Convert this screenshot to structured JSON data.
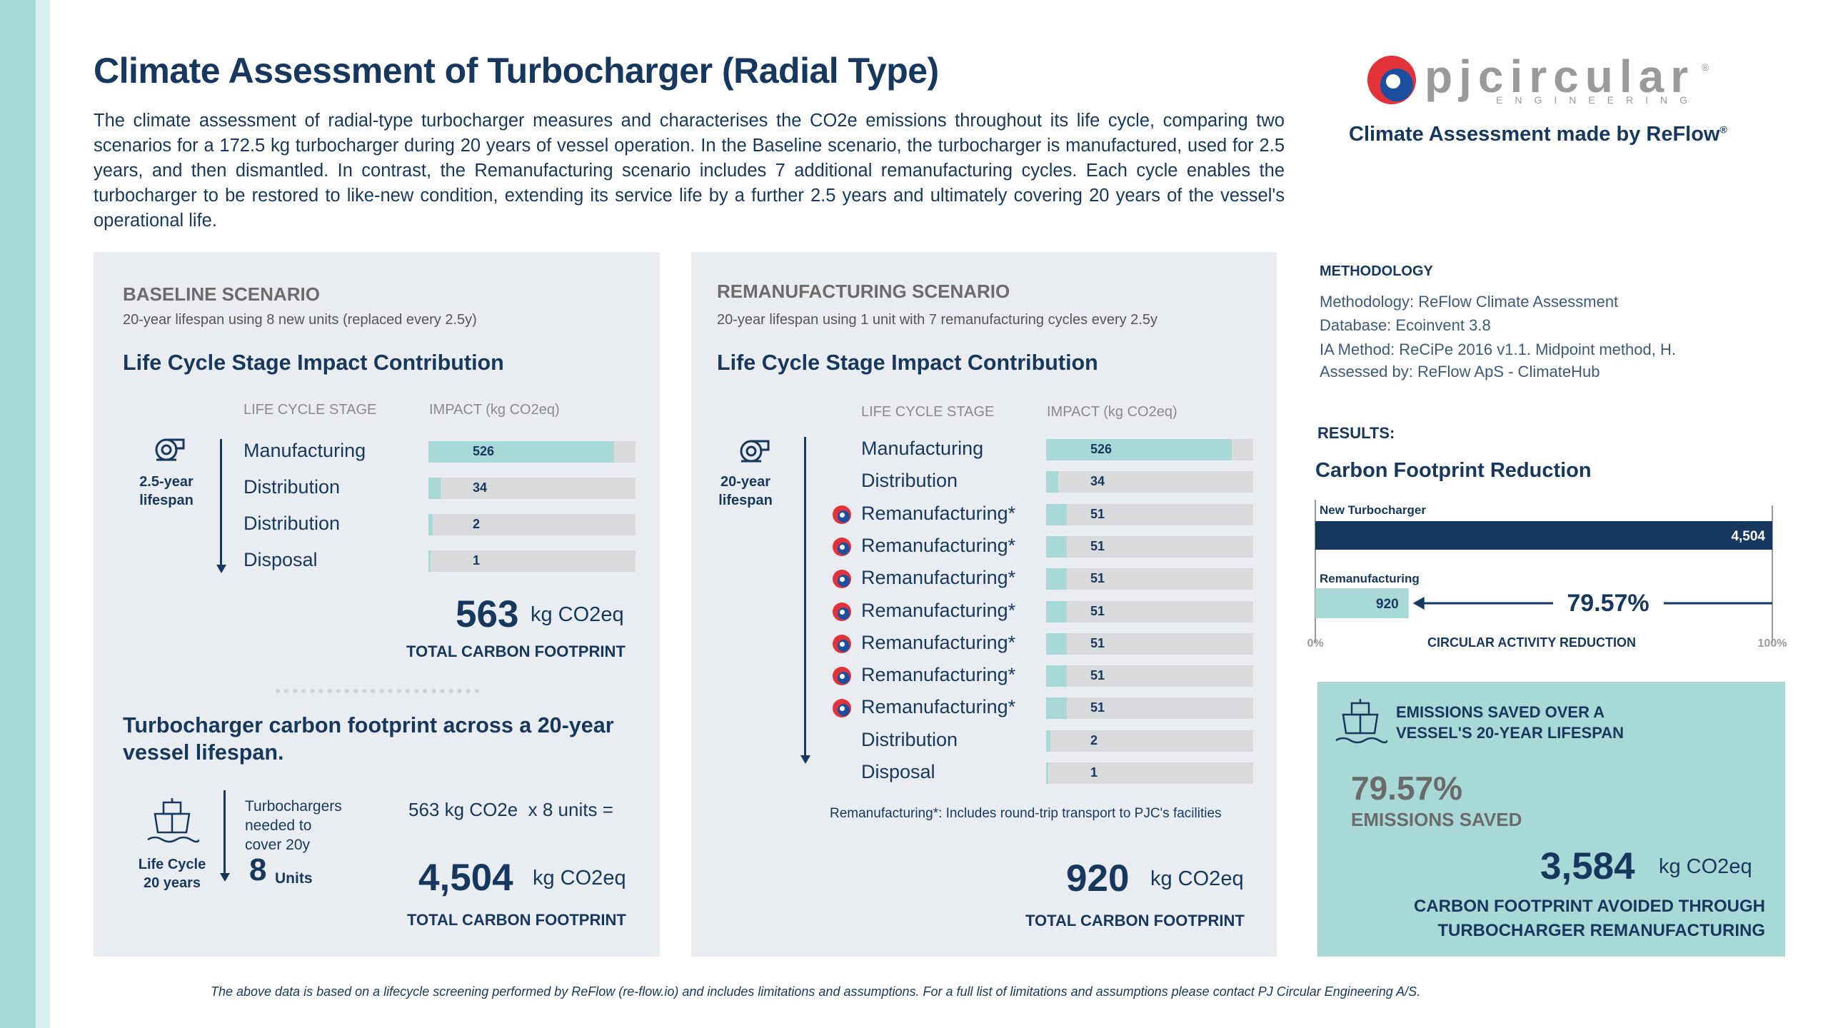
{
  "title": "Climate Assessment of Turbocharger (Radial Type)",
  "intro": "The climate assessment of radial-type turbocharger measures and characterises the CO2e emissions throughout its life cycle, comparing two scenarios for a 172.5 kg turbocharger during 20 years of vessel operation. In the Baseline scenario, the turbocharger is manufactured, used for 2.5 years, and then dismantled. In contrast, the Remanufacturing scenario includes 7 additional remanufacturing cycles. Each cycle enables the turbocharger to be restored to like-new condition, extending its service life by a further 2.5 years and ultimately covering 20 years of the vessel's operational life.",
  "logo": {
    "name": "pjcircular",
    "sub": "ENGINEERING",
    "reg": "®"
  },
  "made_by": "Climate Assessment made by ReFlow",
  "made_by_reg": "®",
  "colors": {
    "navy": "#16385f",
    "teal": "#a8d9d6",
    "panel": "#e9edf2",
    "grey_bar": "#d9dadb",
    "logo_red": "#e2333a",
    "logo_blue": "#1a4fa0"
  },
  "baseline": {
    "heading": "BASELINE SCENARIO",
    "subheading": "20-year lifespan using 8 new units (replaced every 2.5y)",
    "section_title": "Life Cycle Stage Impact Contribution",
    "col_stage": "LIFE CYCLE STAGE",
    "col_impact": "IMPACT (kg CO2eq)",
    "lifespan_line1": "2.5-year",
    "lifespan_line2": "lifespan",
    "icon": "turbocharger-icon",
    "stages": [
      {
        "label": "Manufacturing",
        "value": "526",
        "fraction": 0.895
      },
      {
        "label": "Distribution",
        "value": "34",
        "fraction": 0.06
      },
      {
        "label": "Distribution",
        "value": "2",
        "fraction": 0.02
      },
      {
        "label": "Disposal",
        "value": "1",
        "fraction": 0.008
      }
    ],
    "total_value": "563",
    "total_unit": "kg CO2eq",
    "total_label": "TOTAL CARBON FOOTPRINT",
    "vessel_title": "Turbocharger carbon footprint across a 20-year vessel lifespan.",
    "ship_icon": "ship-icon",
    "life_cycle_line1": "Life Cycle",
    "life_cycle_line2": "20 years",
    "needed_text": "Turbochargers needed to cover 20y",
    "units_num": "8",
    "units_label": "Units",
    "equation": "563 kg CO2e  x 8 units =",
    "vessel_total": "4,504",
    "vessel_unit": "kg CO2eq",
    "vessel_total_label": "TOTAL CARBON FOOTPRINT"
  },
  "reman": {
    "heading": "REMANUFACTURING SCENARIO",
    "subheading": "20-year lifespan using 1 unit with 7 remanufacturing cycles every 2.5y",
    "section_title": "Life Cycle Stage Impact Contribution",
    "col_stage": "LIFE CYCLE STAGE",
    "col_impact": "IMPACT (kg CO2eq)",
    "lifespan_line1": "20-year",
    "lifespan_line2": "lifespan",
    "icon": "turbocharger-icon",
    "stages": [
      {
        "label": "Manufacturing",
        "value": "526",
        "fraction": 0.895,
        "logo": false
      },
      {
        "label": "Distribution",
        "value": "34",
        "fraction": 0.06,
        "logo": false
      },
      {
        "label": "Remanufacturing*",
        "value": "51",
        "fraction": 0.1,
        "logo": true
      },
      {
        "label": "Remanufacturing*",
        "value": "51",
        "fraction": 0.1,
        "logo": true
      },
      {
        "label": "Remanufacturing*",
        "value": "51",
        "fraction": 0.1,
        "logo": true
      },
      {
        "label": "Remanufacturing*",
        "value": "51",
        "fraction": 0.1,
        "logo": true
      },
      {
        "label": "Remanufacturing*",
        "value": "51",
        "fraction": 0.1,
        "logo": true
      },
      {
        "label": "Remanufacturing*",
        "value": "51",
        "fraction": 0.1,
        "logo": true
      },
      {
        "label": "Remanufacturing*",
        "value": "51",
        "fraction": 0.1,
        "logo": true
      },
      {
        "label": "Distribution",
        "value": "2",
        "fraction": 0.02,
        "logo": false
      },
      {
        "label": "Disposal",
        "value": "1",
        "fraction": 0.008,
        "logo": false
      }
    ],
    "footnote": "Remanufacturing*: Includes round-trip transport to PJC's facilities",
    "total_value": "920",
    "total_unit": "kg CO2eq",
    "total_label": "TOTAL CARBON FOOTPRINT"
  },
  "methodology": {
    "heading": "METHODOLOGY",
    "lines": [
      "Methodology: ReFlow Climate Assessment",
      "Database: Ecoinvent 3.8",
      "IA Method: ReCiPe 2016 v1.1. Midpoint method, H.",
      "Assessed by: ReFlow ApS - ClimateHub"
    ]
  },
  "results": {
    "heading": "RESULTS:",
    "title": "Carbon Footprint Reduction",
    "chart_data": {
      "type": "bar",
      "categories": [
        "New Turbocharger",
        "Remanufacturing"
      ],
      "values": [
        4504,
        920
      ],
      "value_labels": [
        "4,504",
        "920"
      ],
      "xlim": [
        0,
        4504
      ],
      "axis_min_label": "0%",
      "axis_max_label": "100%",
      "reduction_label": "79.57%",
      "caption": "CIRCULAR ACTIVITY REDUCTION"
    }
  },
  "saved": {
    "ship_icon": "ship-icon",
    "heading_line1": "EMISSIONS SAVED OVER A",
    "heading_line2": "VESSEL'S 20-YEAR LIFESPAN",
    "pct": "79.57%",
    "pct_label": "EMISSIONS SAVED",
    "value": "3,584",
    "unit": "kg CO2eq",
    "label_line1": "CARBON FOOTPRINT AVOIDED THROUGH",
    "label_line2": "TURBOCHARGER REMANUFACTURING"
  },
  "footer": "The above data is based on a lifecycle screening performed by ReFlow (re-flow.io) and includes limitations and assumptions. For a full list of limitations and assumptions please contact PJ Circular Engineering A/S."
}
